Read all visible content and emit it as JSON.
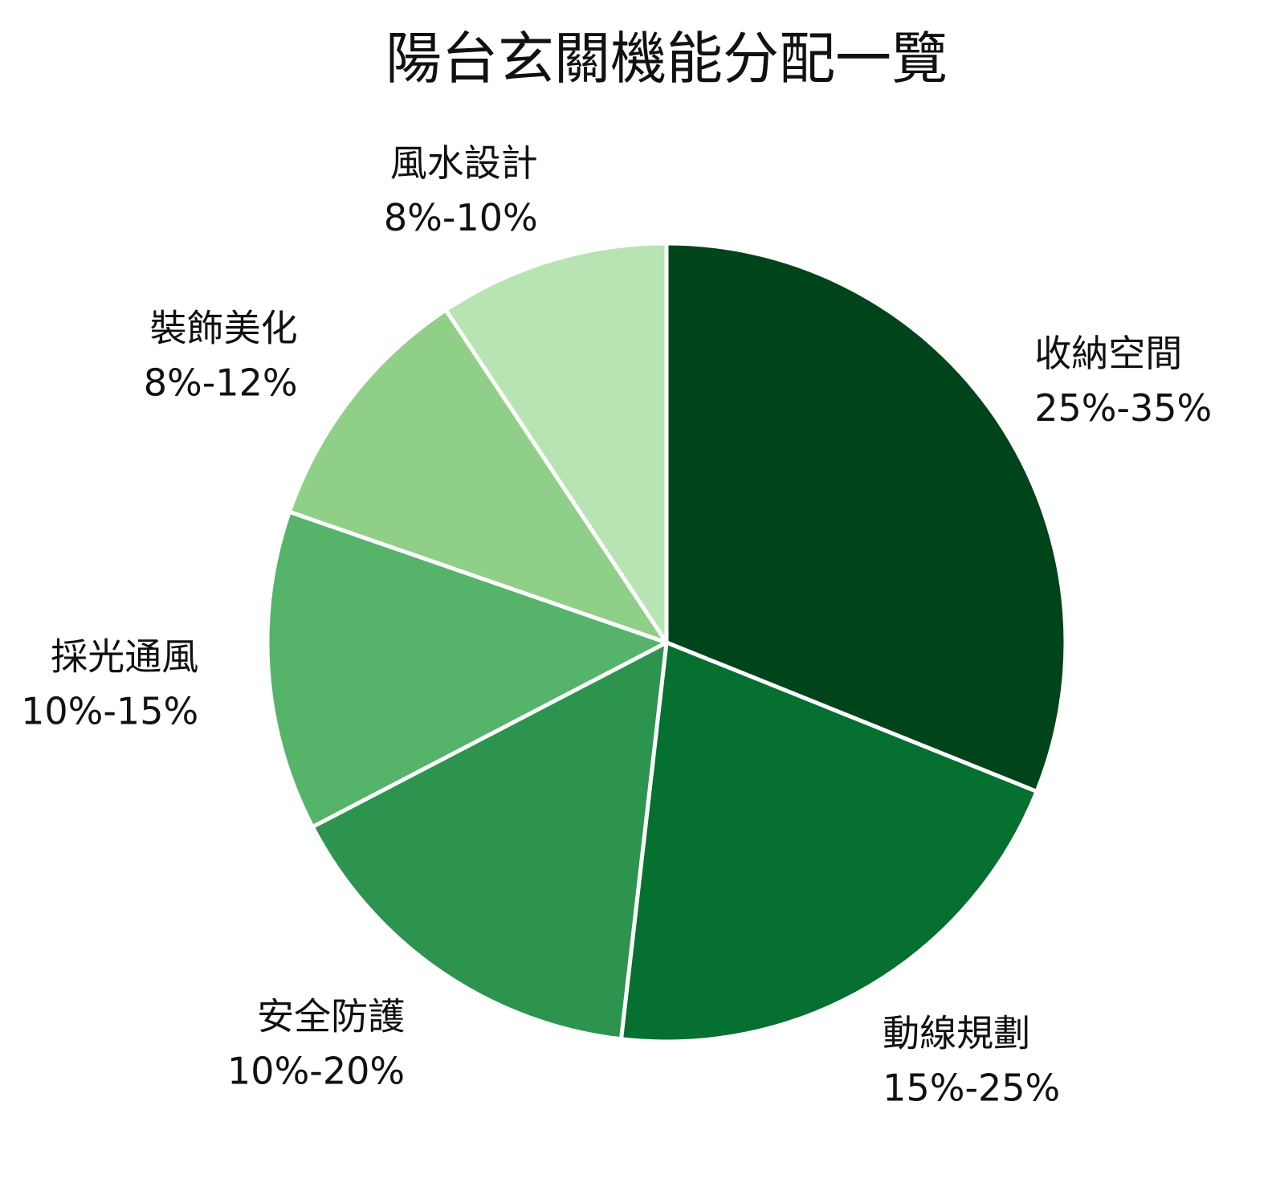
{
  "chart_data": {
    "type": "pie",
    "title": "陽台玄關機能分配一覽",
    "start_angle": "top",
    "direction": "clockwise",
    "slices": [
      {
        "label": "收納空間",
        "range_text": "25%-35%",
        "value": 30,
        "color": "#00441b"
      },
      {
        "label": "動線規劃",
        "range_text": "15%-25%",
        "value": 20,
        "color": "#067030"
      },
      {
        "label": "安全防護",
        "range_text": "10%-20%",
        "value": 15,
        "color": "#2c944f"
      },
      {
        "label": "採光通風",
        "range_text": "10%-15%",
        "value": 12.5,
        "color": "#56b46a"
      },
      {
        "label": "裝飾美化",
        "range_text": "8%-12%",
        "value": 10,
        "color": "#90cf88"
      },
      {
        "label": "風水設計",
        "range_text": "8%-10%",
        "value": 9,
        "color": "#b8e3b2"
      }
    ],
    "slice_border_color": "#ffffff"
  }
}
